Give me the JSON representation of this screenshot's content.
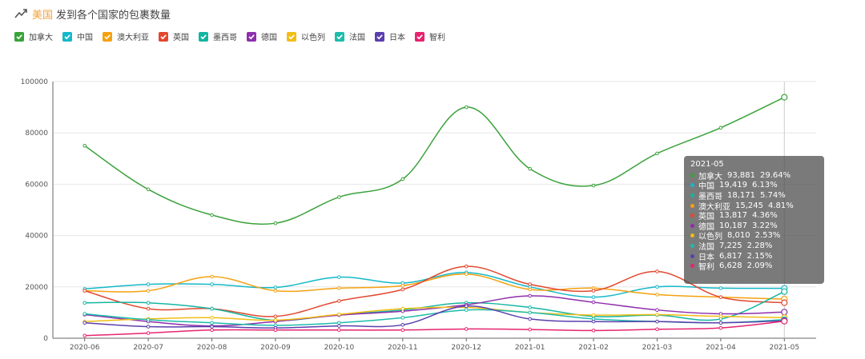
{
  "header": {
    "title_highlight": "美国",
    "title_rest": "发到各个国家的包裹数量"
  },
  "legend": [
    {
      "name": "加拿大",
      "color": "#3ba23b"
    },
    {
      "name": "中国",
      "color": "#15b8c9"
    },
    {
      "name": "澳大利亚",
      "color": "#f5a10f"
    },
    {
      "name": "英国",
      "color": "#e2482f"
    },
    {
      "name": "墨西哥",
      "color": "#14b5a0"
    },
    {
      "name": "德国",
      "color": "#8e2fab"
    },
    {
      "name": "以色列",
      "color": "#f2bd14"
    },
    {
      "name": "法国",
      "color": "#1fbcab"
    },
    {
      "name": "日本",
      "color": "#5b3fad"
    },
    {
      "name": "智利",
      "color": "#e6246f"
    }
  ],
  "tooltip": {
    "title": "2021-05",
    "rows": [
      {
        "name": "加拿大",
        "value": "93,881",
        "pct": "29.64%",
        "color": "#3ba23b"
      },
      {
        "name": "中国",
        "value": "19,419",
        "pct": "6.13%",
        "color": "#15b8c9"
      },
      {
        "name": "墨西哥",
        "value": "18,171",
        "pct": "5.74%",
        "color": "#14b5a0"
      },
      {
        "name": "澳大利亚",
        "value": "15,245",
        "pct": "4.81%",
        "color": "#f5a10f"
      },
      {
        "name": "英国",
        "value": "13,817",
        "pct": "4.36%",
        "color": "#e2482f"
      },
      {
        "name": "德国",
        "value": "10,187",
        "pct": "3.22%",
        "color": "#8e2fab"
      },
      {
        "name": "以色列",
        "value": "8,010",
        "pct": "2.53%",
        "color": "#f2bd14"
      },
      {
        "name": "法国",
        "value": "7,225",
        "pct": "2.28%",
        "color": "#1fbcab"
      },
      {
        "name": "日本",
        "value": "6,817",
        "pct": "2.15%",
        "color": "#5b3fad"
      },
      {
        "name": "智利",
        "value": "6,628",
        "pct": "2.09%",
        "color": "#e6246f"
      }
    ]
  },
  "chart_data": {
    "type": "line",
    "title": "美国 发到各个国家的包裹数量",
    "xlabel": "",
    "ylabel": "",
    "x": [
      "2020-06",
      "2020-07",
      "2020-08",
      "2020-09",
      "2020-10",
      "2020-11",
      "2020-12",
      "2021-01",
      "2021-02",
      "2021-03",
      "2021-04",
      "2021-05"
    ],
    "yticks": [
      "0",
      "20000",
      "40000",
      "60000",
      "80000",
      "100000"
    ],
    "ylim": [
      0,
      100000
    ],
    "grid": true,
    "legend_position": "top-left",
    "series": [
      {
        "name": "加拿大",
        "color": "#3ba23b",
        "values": [
          75000,
          58000,
          48000,
          44800,
          55000,
          62000,
          90000,
          66000,
          59500,
          72000,
          82000,
          93881
        ]
      },
      {
        "name": "中国",
        "color": "#15b8c9",
        "values": [
          19200,
          21000,
          21000,
          19800,
          23800,
          21500,
          25600,
          20000,
          16000,
          20000,
          19500,
          19419
        ]
      },
      {
        "name": "澳大利亚",
        "color": "#f5a10f",
        "values": [
          18500,
          18500,
          24000,
          18500,
          19500,
          20500,
          25000,
          19000,
          19500,
          17000,
          16000,
          15245
        ]
      },
      {
        "name": "英国",
        "color": "#e2482f",
        "values": [
          18500,
          11500,
          11500,
          8500,
          14500,
          19000,
          28000,
          21000,
          18500,
          26000,
          16000,
          13817
        ]
      },
      {
        "name": "墨西哥",
        "color": "#14b5a0",
        "values": [
          13800,
          13800,
          11500,
          7000,
          9200,
          11000,
          13800,
          12000,
          8500,
          9000,
          7500,
          18171
        ]
      },
      {
        "name": "德国",
        "color": "#8e2fab",
        "values": [
          9200,
          6500,
          4800,
          6500,
          9000,
          10500,
          13000,
          16500,
          14000,
          11000,
          9500,
          10187
        ]
      },
      {
        "name": "以色列",
        "color": "#f2bd14",
        "values": [
          6500,
          7500,
          8000,
          7000,
          9300,
          11500,
          12000,
          10000,
          9000,
          9200,
          8500,
          8010
        ]
      },
      {
        "name": "法国",
        "color": "#1fbcab",
        "values": [
          9500,
          7200,
          6000,
          5000,
          6000,
          8000,
          11000,
          10000,
          7500,
          6500,
          6000,
          7225
        ]
      },
      {
        "name": "日本",
        "color": "#5b3fad",
        "values": [
          6000,
          4500,
          4500,
          4000,
          4800,
          5200,
          12500,
          7500,
          6500,
          6500,
          6000,
          6817
        ]
      },
      {
        "name": "智利",
        "color": "#e6246f",
        "values": [
          1000,
          2000,
          3200,
          3200,
          3200,
          3200,
          3600,
          3400,
          3000,
          3500,
          4000,
          6628
        ]
      }
    ],
    "highlight_x": "2021-05"
  }
}
